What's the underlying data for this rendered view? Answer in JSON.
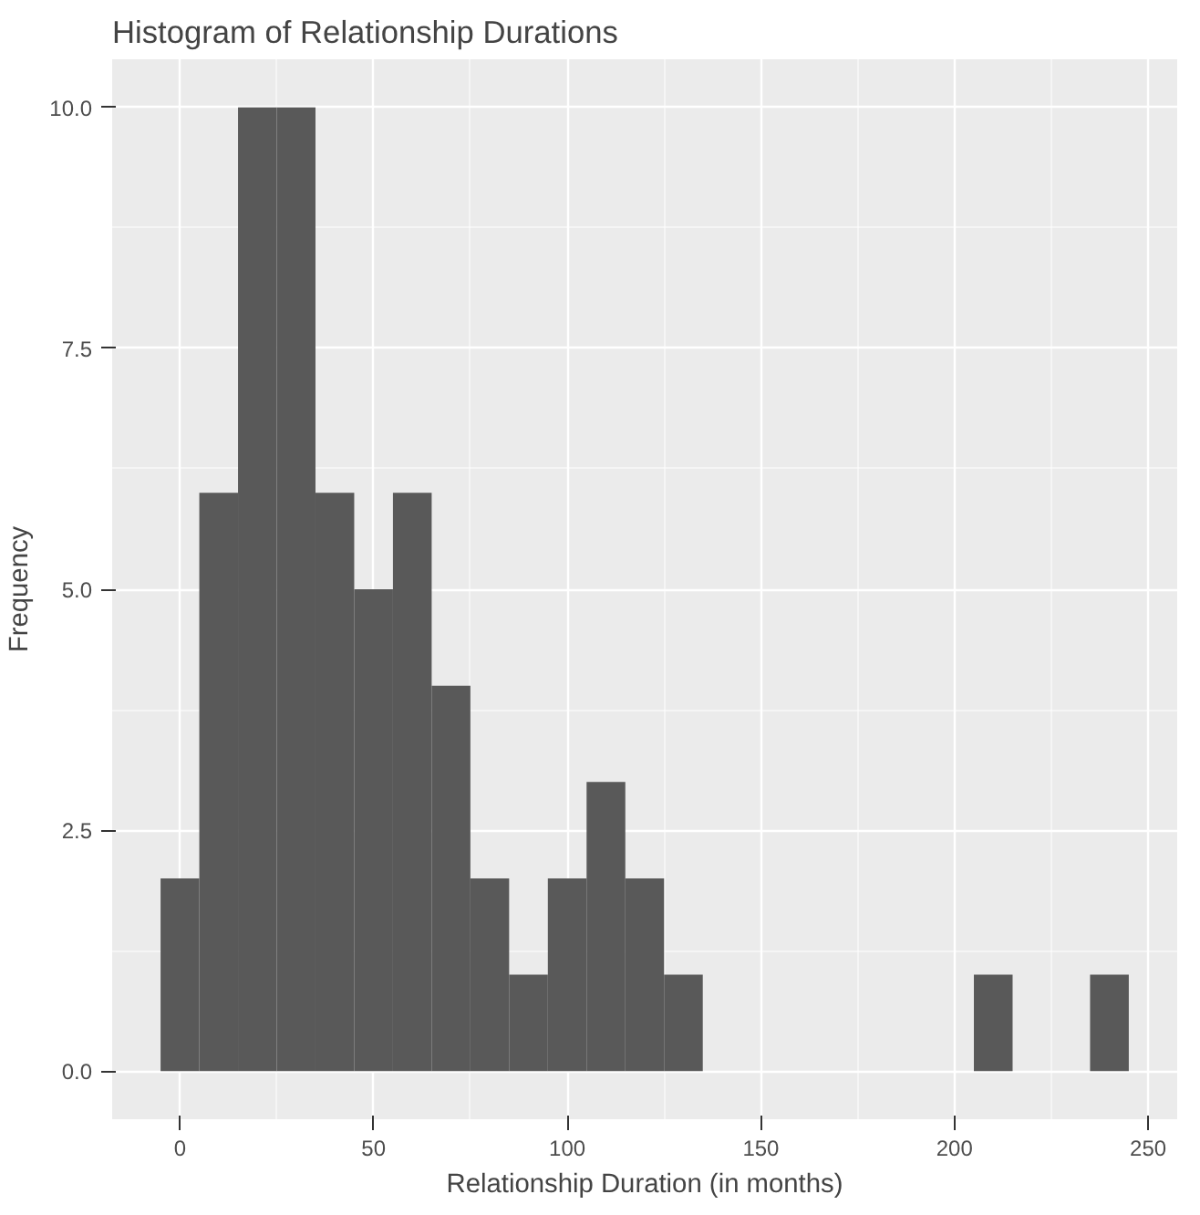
{
  "chart_data": {
    "type": "histogram",
    "title": "Histogram of Relationship Durations",
    "xlabel": "Relationship Duration (in months)",
    "ylabel": "Frequency",
    "bins": [
      -5,
      5,
      15,
      25,
      35,
      45,
      55,
      65,
      75,
      85,
      95,
      105,
      115,
      125,
      135,
      145,
      155,
      165,
      175,
      185,
      195,
      205,
      215,
      225,
      235,
      245
    ],
    "values": [
      2,
      6,
      10,
      10,
      6,
      5,
      6,
      4,
      2,
      1,
      2,
      3,
      2,
      1,
      0,
      0,
      0,
      0,
      0,
      0,
      0,
      1,
      0,
      0,
      1
    ],
    "color": "#595959",
    "xlim": [
      -17.5,
      257.5
    ],
    "xticks": [
      0,
      50,
      100,
      150,
      200,
      250
    ],
    "ylim": [
      -0.5,
      10.5
    ],
    "yticks": [
      {
        "value": 0,
        "label": "0.0"
      },
      {
        "value": 2.5,
        "label": "2.5"
      },
      {
        "value": 5,
        "label": "5.0"
      },
      {
        "value": 7.5,
        "label": "7.5"
      },
      {
        "value": 10,
        "label": "10.0"
      }
    ],
    "grid": true
  }
}
